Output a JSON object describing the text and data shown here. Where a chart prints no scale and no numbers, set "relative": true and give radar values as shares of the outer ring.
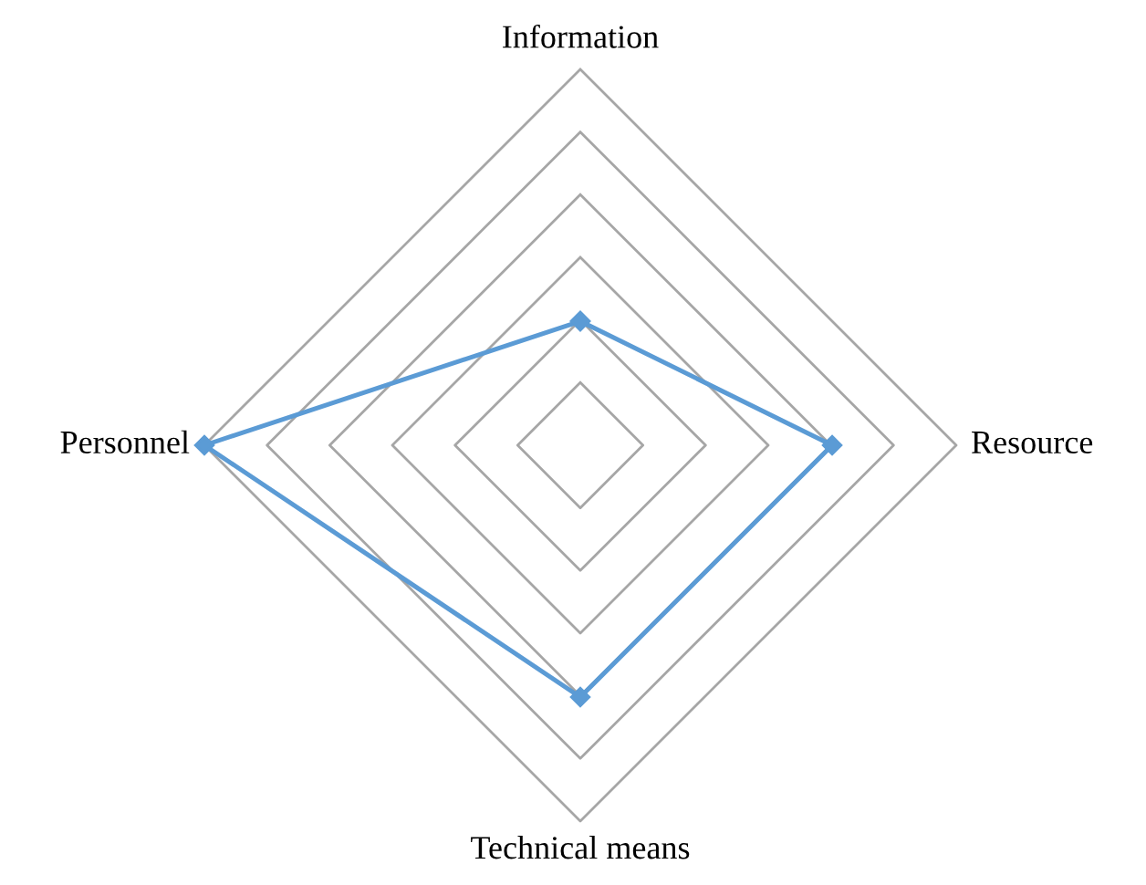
{
  "chart_data": {
    "type": "radar",
    "relative": true,
    "categories": [
      "Information",
      "Resource",
      "Technical means",
      "Personnel"
    ],
    "series": [
      {
        "color": "#5b9bd5",
        "values": [
          0.33,
          0.67,
          0.67,
          1.0
        ]
      }
    ],
    "marker": "diamond",
    "line_style": "solid",
    "grid": true
  }
}
